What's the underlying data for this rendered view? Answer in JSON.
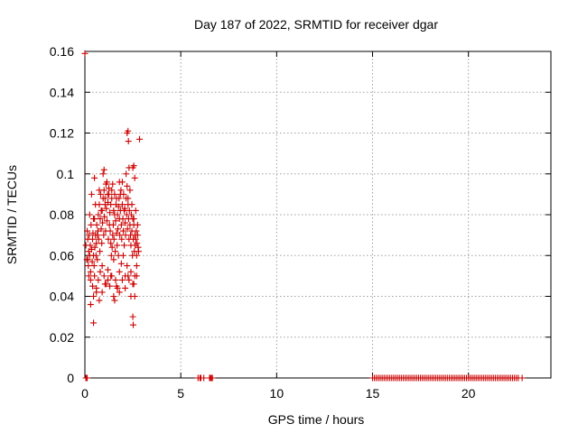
{
  "chart_data": {
    "type": "scatter",
    "title": "Day 187 of 2022, SRMTID for receiver dgar",
    "xlabel": "GPS time / hours",
    "ylabel": "SRMTID / TECUs",
    "xlim": [
      0,
      24.3
    ],
    "ylim": [
      0,
      0.16
    ],
    "xticks": [
      0,
      5,
      10,
      15,
      20
    ],
    "xtick_labels": [
      "0",
      "5",
      "10",
      "15",
      "20"
    ],
    "yticks": [
      0,
      0.02,
      0.04,
      0.06,
      0.08,
      0.1,
      0.12,
      0.14,
      0.16
    ],
    "ytick_labels": [
      "0",
      "0.02",
      "0.04",
      "0.06",
      "0.08",
      "0.1",
      "0.12",
      "0.14",
      "0.16"
    ],
    "grid": true,
    "legend": "none",
    "marker": "plus",
    "color": "#cc0000",
    "series": [
      {
        "x": [
          0.05,
          0.1,
          0.12,
          0.15,
          0.18,
          0.2,
          0.22,
          0.25,
          0.28,
          0.3,
          0.32,
          0.35,
          0.38,
          0.4,
          0.42,
          0.45,
          0.48,
          0.5,
          0.52,
          0.55,
          0.58,
          0.6,
          0.62,
          0.65,
          0.68,
          0.7,
          0.72,
          0.75,
          0.78,
          0.8,
          0.82,
          0.85,
          0.88,
          0.9,
          0.92,
          0.95,
          0.98,
          1.0,
          1.02,
          1.05,
          1.08,
          1.1,
          1.12,
          1.15,
          1.18,
          1.2,
          1.22,
          1.25,
          1.28,
          1.3,
          1.32,
          1.35,
          1.38,
          1.4,
          1.42,
          1.45,
          1.48,
          1.5,
          1.52,
          1.55,
          1.58,
          1.6,
          1.62,
          1.65,
          1.68,
          1.7,
          1.72,
          1.75,
          1.78,
          1.8,
          1.82,
          1.85,
          1.88,
          1.9,
          1.92,
          1.95,
          1.98,
          2.0,
          2.02,
          2.05,
          2.08,
          2.1,
          2.12,
          2.15,
          2.18,
          2.2,
          2.22,
          2.25,
          2.28,
          2.3,
          2.32,
          2.35,
          2.38,
          2.4,
          2.42,
          2.45,
          2.48,
          2.5,
          2.52,
          2.55,
          2.58,
          2.6,
          2.62,
          2.65,
          2.68,
          2.7,
          2.72,
          2.75,
          2.78,
          2.8,
          0.2,
          0.3,
          0.4,
          0.5,
          0.6,
          0.7,
          0.8,
          0.9,
          1.0,
          1.1,
          1.2,
          1.3,
          1.4,
          1.5,
          1.6,
          1.7,
          1.8,
          1.9,
          2.0,
          2.1,
          2.2,
          2.3,
          2.4,
          2.5,
          2.6,
          2.7,
          0.25,
          0.35,
          0.45,
          0.55,
          0.65,
          0.75,
          0.85,
          0.95,
          1.05,
          1.15,
          1.25,
          1.35,
          1.45,
          1.55,
          1.65,
          1.75,
          1.85,
          1.95,
          2.05,
          2.15,
          2.25,
          2.35,
          2.45,
          2.55,
          2.65,
          2.75,
          0.15,
          0.3,
          0.45,
          0.6,
          0.75,
          0.9,
          1.05,
          1.2,
          1.35,
          1.5,
          1.65,
          1.8,
          1.95,
          2.1,
          2.25,
          2.4,
          2.55,
          2.7,
          0.5,
          1.0,
          1.4,
          1.8,
          2.3,
          2.6,
          0.45,
          1.55,
          2.2,
          2.5,
          2.55,
          2.25,
          2.27,
          2.5,
          2.52,
          2.6,
          2.85,
          0.0
        ],
        "y": [
          0.065,
          0.058,
          0.072,
          0.068,
          0.055,
          0.062,
          0.07,
          0.06,
          0.065,
          0.052,
          0.075,
          0.063,
          0.057,
          0.068,
          0.071,
          0.06,
          0.055,
          0.078,
          0.064,
          0.07,
          0.06,
          0.066,
          0.075,
          0.058,
          0.072,
          0.08,
          0.068,
          0.085,
          0.062,
          0.078,
          0.09,
          0.073,
          0.066,
          0.082,
          0.076,
          0.088,
          0.07,
          0.092,
          0.079,
          0.085,
          0.072,
          0.095,
          0.083,
          0.077,
          0.09,
          0.086,
          0.068,
          0.093,
          0.075,
          0.081,
          0.072,
          0.066,
          0.06,
          0.088,
          0.064,
          0.07,
          0.075,
          0.082,
          0.068,
          0.09,
          0.062,
          0.077,
          0.085,
          0.071,
          0.065,
          0.08,
          0.073,
          0.06,
          0.088,
          0.078,
          0.07,
          0.082,
          0.092,
          0.075,
          0.068,
          0.085,
          0.078,
          0.072,
          0.09,
          0.065,
          0.083,
          0.076,
          0.07,
          0.088,
          0.08,
          0.094,
          0.073,
          0.085,
          0.078,
          0.068,
          0.082,
          0.075,
          0.07,
          0.065,
          0.08,
          0.072,
          0.06,
          0.078,
          0.068,
          0.075,
          0.062,
          0.07,
          0.065,
          0.068,
          0.072,
          0.06,
          0.066,
          0.07,
          0.064,
          0.062,
          0.05,
          0.048,
          0.045,
          0.05,
          0.042,
          0.048,
          0.052,
          0.055,
          0.05,
          0.046,
          0.053,
          0.045,
          0.05,
          0.058,
          0.048,
          0.044,
          0.052,
          0.056,
          0.06,
          0.05,
          0.055,
          0.048,
          0.052,
          0.046,
          0.05,
          0.055,
          0.08,
          0.09,
          0.078,
          0.085,
          0.07,
          0.092,
          0.082,
          0.1,
          0.088,
          0.096,
          0.09,
          0.085,
          0.095,
          0.08,
          0.088,
          0.084,
          0.09,
          0.096,
          0.082,
          0.1,
          0.088,
          0.092,
          0.085,
          0.078,
          0.082,
          0.075,
          0.058,
          0.036,
          0.04,
          0.044,
          0.038,
          0.042,
          0.046,
          0.048,
          0.05,
          0.04,
          0.045,
          0.042,
          0.048,
          0.044,
          0.05,
          0.04,
          0.046,
          0.05,
          0.098,
          0.102,
          0.092,
          0.096,
          0.103,
          0.098,
          0.027,
          0.038,
          0.12,
          0.103,
          0.104,
          0.121,
          0.116,
          0.03,
          0.026,
          0.04,
          0.117,
          0.159
        ]
      },
      {
        "x": [
          0.05,
          0.1,
          0.12,
          5.9,
          6.0,
          6.05,
          6.2,
          6.5,
          6.55,
          6.6,
          6.65,
          15.0,
          15.1,
          15.2,
          15.3,
          15.4,
          15.5,
          15.6,
          15.7,
          15.8,
          15.9,
          16.0,
          16.1,
          16.2,
          16.3,
          16.4,
          16.5,
          16.6,
          16.7,
          16.8,
          16.9,
          17.0,
          17.1,
          17.2,
          17.3,
          17.4,
          17.5,
          17.6,
          17.7,
          17.8,
          17.9,
          18.0,
          18.1,
          18.2,
          18.3,
          18.4,
          18.5,
          18.6,
          18.7,
          18.8,
          18.9,
          19.0,
          19.1,
          19.2,
          19.3,
          19.4,
          19.5,
          19.6,
          19.7,
          19.8,
          19.9,
          20.0,
          20.1,
          20.2,
          20.3,
          20.4,
          20.5,
          20.6,
          20.7,
          20.8,
          20.9,
          21.0,
          21.1,
          21.2,
          21.3,
          21.4,
          21.5,
          21.6,
          21.7,
          21.8,
          21.9,
          22.0,
          22.1,
          22.2,
          22.3,
          22.4,
          22.5,
          22.6,
          22.8
        ],
        "y": [
          0,
          0,
          0,
          0,
          0,
          0,
          0,
          0,
          0,
          0,
          0,
          0,
          0,
          0,
          0,
          0,
          0,
          0,
          0,
          0,
          0,
          0,
          0,
          0,
          0,
          0,
          0,
          0,
          0,
          0,
          0,
          0,
          0,
          0,
          0,
          0,
          0,
          0,
          0,
          0,
          0,
          0,
          0,
          0,
          0,
          0,
          0,
          0,
          0,
          0,
          0,
          0,
          0,
          0,
          0,
          0,
          0,
          0,
          0,
          0,
          0,
          0,
          0,
          0,
          0,
          0,
          0,
          0,
          0,
          0,
          0,
          0,
          0,
          0,
          0,
          0,
          0,
          0,
          0,
          0,
          0,
          0,
          0,
          0,
          0,
          0,
          0,
          0,
          0
        ]
      }
    ]
  }
}
